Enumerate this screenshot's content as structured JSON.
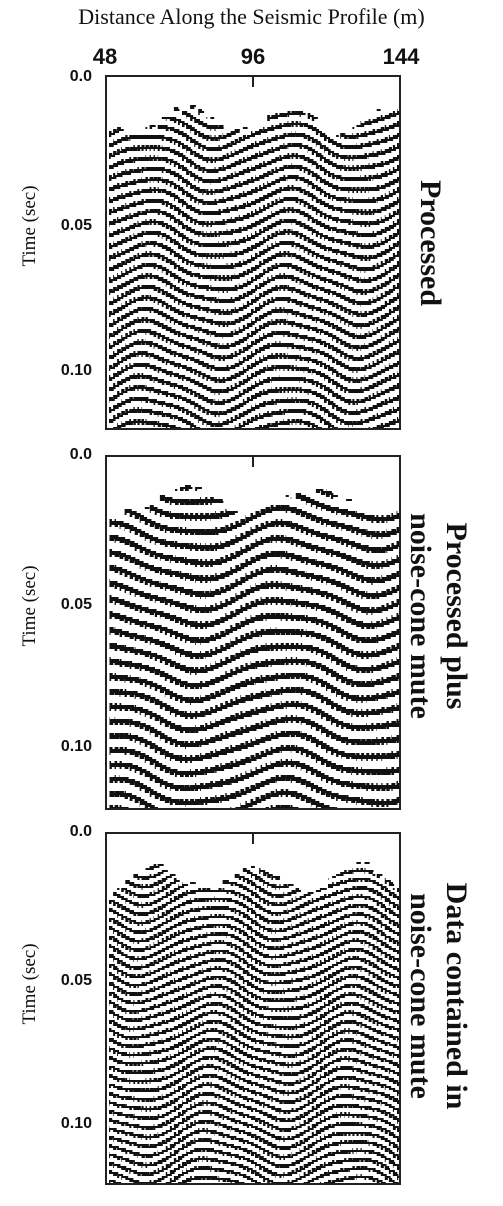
{
  "figure": {
    "title": "Distance Along the Seismic Profile (m)",
    "x_ticks": [
      "48",
      "96",
      "144"
    ],
    "y_axis_label": "Time (sec)",
    "y_ticks": [
      "0.0",
      "0.05",
      "0.10"
    ]
  },
  "panels": [
    {
      "name": "processed",
      "label_lines": [
        "Processed"
      ]
    },
    {
      "name": "processed-plus-mute",
      "label_lines": [
        "Processed plus",
        "noise-cone mute"
      ]
    },
    {
      "name": "noise-cone-data",
      "label_lines": [
        "Data contained in",
        "noise-cone mute"
      ]
    }
  ]
}
